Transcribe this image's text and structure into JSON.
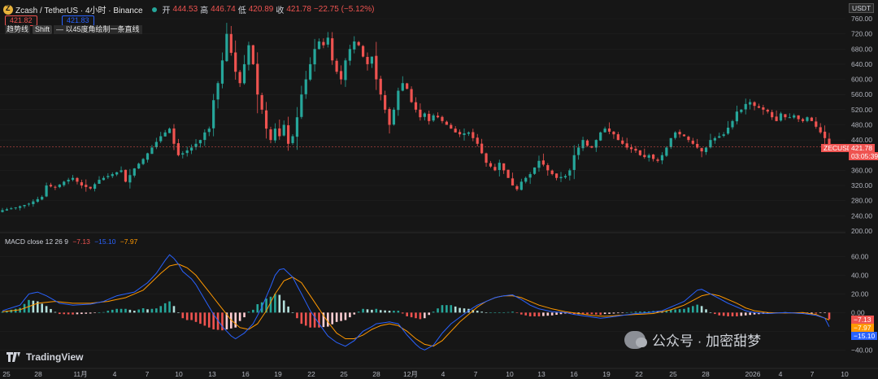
{
  "header": {
    "symbol": "Zcash / TetherUS · 4小时 · Binance",
    "open_label": "开",
    "open": "444.53",
    "high_label": "高",
    "high": "446.74",
    "low_label": "低",
    "low": "420.89",
    "close_label": "收",
    "close": "421.78",
    "change": "−22.75 (−5.12%)"
  },
  "sell_price": "421.82",
  "buy_price": "421.83",
  "tool": {
    "name": "趋势线",
    "key": "Shift",
    "hint": "— 以45度角绘制一条直线"
  },
  "currency": "USDT",
  "price_badge": {
    "symbol": "ZECUSDT",
    "price": "421.78",
    "countdown": "03:05:39"
  },
  "macd": {
    "label": "MACD close 12 26 9",
    "hist": "−7.13",
    "macd": "−15.10",
    "signal": "−7.97"
  },
  "brand": "TradingView",
  "watermark": "公众号 · 加密甜梦",
  "colors": {
    "up": "#26a69a",
    "down": "#ef5350",
    "macd_line": "#2962ff",
    "signal_line": "#ff9800",
    "bg": "#161616"
  },
  "chart_data": [
    {
      "type": "candlestick",
      "symbol": "ZECUSDT",
      "timeframe": "4h",
      "y_range": [
        200,
        760
      ],
      "y_ticks": [
        760,
        720,
        680,
        640,
        600,
        560,
        520,
        480,
        440,
        400,
        360,
        320,
        280,
        240,
        200
      ],
      "x_ticks": [
        "25",
        "28",
        "11月",
        "4",
        "7",
        "10",
        "13",
        "16",
        "19",
        "22",
        "25",
        "28",
        "12月",
        "4",
        "7",
        "10",
        "13",
        "16",
        "19",
        "22",
        "25",
        "28",
        "2026",
        "4",
        "7",
        "10"
      ],
      "last_price": 421.78,
      "close_path": [
        [
          0,
          255
        ],
        [
          3,
          262
        ],
        [
          6,
          272
        ],
        [
          9,
          290
        ],
        [
          10,
          320
        ],
        [
          12,
          315
        ],
        [
          14,
          330
        ],
        [
          16,
          340
        ],
        [
          18,
          320
        ],
        [
          20,
          312
        ],
        [
          22,
          335
        ],
        [
          25,
          350
        ],
        [
          27,
          360
        ],
        [
          28,
          330
        ],
        [
          30,
          365
        ],
        [
          32,
          390
        ],
        [
          34,
          420
        ],
        [
          36,
          450
        ],
        [
          38,
          470
        ],
        [
          39,
          430
        ],
        [
          40,
          400
        ],
        [
          41,
          405
        ],
        [
          43,
          420
        ],
        [
          45,
          440
        ],
        [
          46,
          460
        ],
        [
          47,
          470
        ],
        [
          48,
          545
        ],
        [
          49,
          590
        ],
        [
          50,
          650
        ],
        [
          51,
          720
        ],
        [
          52,
          670
        ],
        [
          53,
          620
        ],
        [
          54,
          590
        ],
        [
          55,
          640
        ],
        [
          56,
          690
        ],
        [
          57,
          640
        ],
        [
          58,
          560
        ],
        [
          59,
          520
        ],
        [
          60,
          470
        ],
        [
          61,
          440
        ],
        [
          62,
          470
        ],
        [
          63,
          450
        ],
        [
          64,
          480
        ],
        [
          65,
          430
        ],
        [
          66,
          450
        ],
        [
          67,
          500
        ],
        [
          68,
          560
        ],
        [
          69,
          600
        ],
        [
          70,
          640
        ],
        [
          71,
          680
        ],
        [
          72,
          700
        ],
        [
          73,
          690
        ],
        [
          74,
          710
        ],
        [
          75,
          650
        ],
        [
          76,
          620
        ],
        [
          77,
          600
        ],
        [
          78,
          650
        ],
        [
          79,
          680
        ],
        [
          80,
          700
        ],
        [
          81,
          690
        ],
        [
          82,
          660
        ],
        [
          83,
          640
        ],
        [
          84,
          660
        ],
        [
          85,
          600
        ],
        [
          86,
          560
        ],
        [
          87,
          520
        ],
        [
          88,
          480
        ],
        [
          89,
          520
        ],
        [
          90,
          570
        ],
        [
          91,
          590
        ],
        [
          92,
          575
        ],
        [
          93,
          540
        ],
        [
          94,
          520
        ],
        [
          95,
          500
        ],
        [
          96,
          510
        ],
        [
          97,
          490
        ],
        [
          98,
          505
        ],
        [
          99,
          500
        ],
        [
          100,
          490
        ],
        [
          101,
          480
        ],
        [
          102,
          470
        ],
        [
          103,
          460
        ],
        [
          104,
          455
        ],
        [
          106,
          460
        ],
        [
          108,
          430
        ],
        [
          110,
          380
        ],
        [
          112,
          360
        ],
        [
          113,
          380
        ],
        [
          115,
          340
        ],
        [
          116,
          320
        ],
        [
          117,
          310
        ],
        [
          118,
          330
        ],
        [
          120,
          350
        ],
        [
          122,
          385
        ],
        [
          123,
          375
        ],
        [
          124,
          360
        ],
        [
          125,
          350
        ],
        [
          126,
          340
        ],
        [
          128,
          345
        ],
        [
          129,
          360
        ],
        [
          130,
          400
        ],
        [
          131,
          420
        ],
        [
          132,
          440
        ],
        [
          133,
          425
        ],
        [
          134,
          420
        ],
        [
          135,
          440
        ],
        [
          136,
          460
        ],
        [
          137,
          470
        ],
        [
          138,
          462
        ],
        [
          139,
          455
        ],
        [
          140,
          440
        ],
        [
          141,
          430
        ],
        [
          142,
          420
        ],
        [
          144,
          412
        ],
        [
          145,
          400
        ],
        [
          146,
          395
        ],
        [
          147,
          400
        ],
        [
          148,
          390
        ],
        [
          149,
          385
        ],
        [
          150,
          400
        ],
        [
          151,
          420
        ],
        [
          152,
          445
        ],
        [
          153,
          460
        ],
        [
          154,
          455
        ],
        [
          155,
          450
        ],
        [
          156,
          440
        ],
        [
          157,
          430
        ],
        [
          158,
          420
        ],
        [
          159,
          410
        ],
        [
          160,
          420
        ],
        [
          161,
          440
        ],
        [
          162,
          445
        ],
        [
          163,
          450
        ],
        [
          164,
          455
        ],
        [
          166,
          490
        ],
        [
          167,
          515
        ],
        [
          168,
          520
        ],
        [
          169,
          535
        ],
        [
          170,
          540
        ],
        [
          171,
          530
        ],
        [
          172,
          525
        ],
        [
          173,
          520
        ],
        [
          174,
          515
        ],
        [
          175,
          500
        ],
        [
          176,
          490
        ],
        [
          177,
          510
        ],
        [
          178,
          500
        ],
        [
          179,
          500
        ],
        [
          180,
          505
        ],
        [
          181,
          495
        ],
        [
          182,
          490
        ],
        [
          183,
          500
        ],
        [
          184,
          490
        ],
        [
          185,
          475
        ],
        [
          186,
          460
        ],
        [
          187,
          445
        ],
        [
          188,
          421.78
        ]
      ]
    },
    {
      "type": "macd",
      "params": "close 12 26 9",
      "y_range": [
        -45,
        70
      ],
      "y_ticks": [
        60,
        40,
        20,
        0,
        -20,
        -40
      ],
      "macd_path": [
        [
          0,
          2
        ],
        [
          4,
          8
        ],
        [
          6,
          20
        ],
        [
          8,
          22
        ],
        [
          10,
          18
        ],
        [
          13,
          10
        ],
        [
          16,
          8
        ],
        [
          20,
          9
        ],
        [
          23,
          12
        ],
        [
          26,
          18
        ],
        [
          28,
          20
        ],
        [
          30,
          22
        ],
        [
          33,
          32
        ],
        [
          35,
          42
        ],
        [
          37,
          56
        ],
        [
          38,
          62
        ],
        [
          39,
          58
        ],
        [
          40,
          52
        ],
        [
          41,
          44
        ],
        [
          42,
          40
        ],
        [
          43,
          36
        ],
        [
          44,
          30
        ],
        [
          45,
          22
        ],
        [
          46,
          14
        ],
        [
          48,
          -2
        ],
        [
          50,
          -15
        ],
        [
          52,
          -25
        ],
        [
          53,
          -28
        ],
        [
          55,
          -22
        ],
        [
          57,
          -12
        ],
        [
          59,
          6
        ],
        [
          61,
          28
        ],
        [
          62,
          40
        ],
        [
          63,
          46
        ],
        [
          64,
          47
        ],
        [
          66,
          38
        ],
        [
          68,
          20
        ],
        [
          70,
          2
        ],
        [
          72,
          -12
        ],
        [
          74,
          -25
        ],
        [
          76,
          -32
        ],
        [
          78,
          -36
        ],
        [
          80,
          -30
        ],
        [
          82,
          -20
        ],
        [
          84,
          -15
        ],
        [
          85,
          -12
        ],
        [
          88,
          -10
        ],
        [
          90,
          -12
        ],
        [
          92,
          -24
        ],
        [
          94,
          -34
        ],
        [
          95,
          -38
        ],
        [
          96,
          -40
        ],
        [
          98,
          -35
        ],
        [
          100,
          -22
        ],
        [
          102,
          -12
        ],
        [
          104,
          -5
        ],
        [
          106,
          2
        ],
        [
          108,
          8
        ],
        [
          110,
          12
        ],
        [
          112,
          16
        ],
        [
          114,
          18
        ],
        [
          116,
          19
        ],
        [
          118,
          14
        ],
        [
          120,
          8
        ],
        [
          122,
          4
        ],
        [
          125,
          1
        ],
        [
          128,
          0
        ],
        [
          130,
          -2
        ],
        [
          133,
          -4
        ],
        [
          136,
          -6
        ],
        [
          138,
          -5
        ],
        [
          141,
          -3
        ],
        [
          144,
          -1
        ],
        [
          147,
          0
        ],
        [
          150,
          2
        ],
        [
          153,
          8
        ],
        [
          155,
          12
        ],
        [
          157,
          20
        ],
        [
          158,
          24
        ],
        [
          159,
          25
        ],
        [
          161,
          20
        ],
        [
          163,
          15
        ],
        [
          165,
          10
        ],
        [
          167,
          6
        ],
        [
          169,
          2
        ],
        [
          171,
          0
        ],
        [
          174,
          -1
        ],
        [
          178,
          0
        ],
        [
          182,
          -1
        ],
        [
          185,
          -3
        ],
        [
          187,
          -6
        ],
        [
          188,
          -15.1
        ]
      ],
      "signal_path": [
        [
          0,
          1
        ],
        [
          4,
          3
        ],
        [
          8,
          10
        ],
        [
          12,
          12
        ],
        [
          16,
          10
        ],
        [
          20,
          10
        ],
        [
          24,
          12
        ],
        [
          28,
          16
        ],
        [
          32,
          24
        ],
        [
          36,
          42
        ],
        [
          38,
          50
        ],
        [
          40,
          52
        ],
        [
          42,
          48
        ],
        [
          44,
          40
        ],
        [
          46,
          28
        ],
        [
          48,
          16
        ],
        [
          50,
          4
        ],
        [
          52,
          -8
        ],
        [
          54,
          -16
        ],
        [
          56,
          -18
        ],
        [
          58,
          -12
        ],
        [
          60,
          2
        ],
        [
          62,
          20
        ],
        [
          64,
          34
        ],
        [
          66,
          38
        ],
        [
          68,
          32
        ],
        [
          70,
          18
        ],
        [
          72,
          4
        ],
        [
          74,
          -10
        ],
        [
          76,
          -22
        ],
        [
          78,
          -28
        ],
        [
          80,
          -28
        ],
        [
          82,
          -24
        ],
        [
          84,
          -18
        ],
        [
          86,
          -14
        ],
        [
          88,
          -12
        ],
        [
          90,
          -14
        ],
        [
          92,
          -20
        ],
        [
          94,
          -28
        ],
        [
          96,
          -34
        ],
        [
          98,
          -36
        ],
        [
          100,
          -30
        ],
        [
          102,
          -20
        ],
        [
          104,
          -10
        ],
        [
          106,
          -2
        ],
        [
          108,
          6
        ],
        [
          110,
          12
        ],
        [
          112,
          16
        ],
        [
          114,
          18
        ],
        [
          116,
          18
        ],
        [
          118,
          16
        ],
        [
          120,
          12
        ],
        [
          122,
          8
        ],
        [
          125,
          4
        ],
        [
          128,
          1
        ],
        [
          131,
          -1
        ],
        [
          134,
          -3
        ],
        [
          137,
          -4
        ],
        [
          140,
          -3
        ],
        [
          144,
          -2
        ],
        [
          148,
          -1
        ],
        [
          152,
          3
        ],
        [
          155,
          8
        ],
        [
          157,
          13
        ],
        [
          159,
          18
        ],
        [
          161,
          20
        ],
        [
          163,
          18
        ],
        [
          165,
          14
        ],
        [
          167,
          10
        ],
        [
          169,
          5
        ],
        [
          171,
          2
        ],
        [
          174,
          0
        ],
        [
          178,
          -0.5
        ],
        [
          182,
          0
        ],
        [
          185,
          -2
        ],
        [
          188,
          -7.97
        ]
      ]
    }
  ]
}
